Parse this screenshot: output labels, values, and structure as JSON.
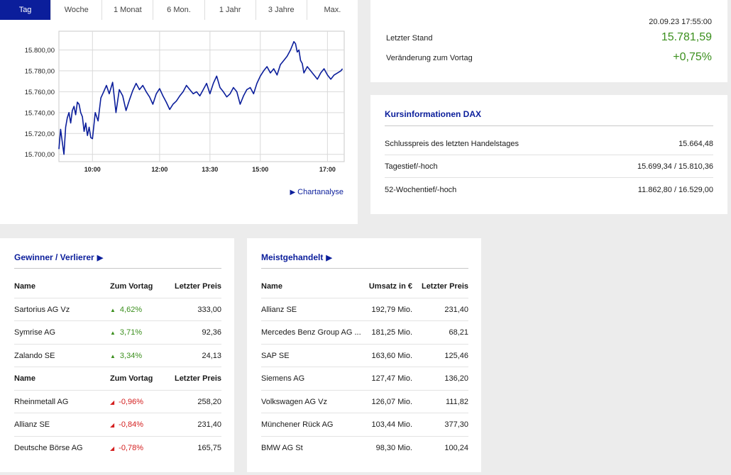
{
  "tabs": [
    "Tag",
    "Woche",
    "1 Monat",
    "6 Mon.",
    "1 Jahr",
    "3 Jahre",
    "Max."
  ],
  "active_tab": "Tag",
  "chart_link": "Chartanalyse",
  "chart_data": {
    "type": "line",
    "x_ticks": [
      "10:00",
      "12:00",
      "13:30",
      "15:00",
      "17:00"
    ],
    "x_tick_minutes": [
      600,
      720,
      810,
      900,
      1020
    ],
    "x_range_minutes": [
      540,
      1050
    ],
    "y_ticks": [
      "15.700,00",
      "15.720,00",
      "15.740,00",
      "15.760,00",
      "15.780,00",
      "15.800,00"
    ],
    "y_tick_values": [
      15700,
      15720,
      15740,
      15760,
      15780,
      15800
    ],
    "ylim": [
      15693,
      15818
    ],
    "grid": true,
    "color": "#0b1e9b",
    "x": [
      540,
      543,
      546,
      549,
      552,
      555,
      558,
      561,
      564,
      567,
      570,
      573,
      576,
      579,
      582,
      585,
      588,
      591,
      594,
      597,
      600,
      605,
      610,
      615,
      620,
      625,
      630,
      636,
      642,
      648,
      654,
      660,
      666,
      672,
      678,
      684,
      690,
      696,
      702,
      708,
      714,
      720,
      726,
      732,
      738,
      744,
      750,
      756,
      762,
      768,
      774,
      780,
      786,
      792,
      798,
      804,
      810,
      816,
      822,
      828,
      834,
      840,
      846,
      852,
      858,
      864,
      870,
      876,
      882,
      888,
      894,
      900,
      906,
      912,
      918,
      924,
      930,
      936,
      942,
      948,
      954,
      960,
      963,
      966,
      969,
      972,
      975,
      978,
      984,
      990,
      996,
      1002,
      1008,
      1014,
      1020,
      1026,
      1032,
      1038,
      1044,
      1047
    ],
    "y": [
      15705,
      15724,
      15712,
      15700,
      15726,
      15735,
      15740,
      15730,
      15742,
      15746,
      15738,
      15750,
      15748,
      15740,
      15736,
      15722,
      15730,
      15718,
      15726,
      15716,
      15715,
      15740,
      15732,
      15754,
      15760,
      15766,
      15758,
      15769,
      15740,
      15762,
      15756,
      15742,
      15752,
      15761,
      15768,
      15762,
      15766,
      15760,
      15755,
      15748,
      15758,
      15763,
      15756,
      15750,
      15743,
      15748,
      15751,
      15756,
      15760,
      15766,
      15762,
      15758,
      15760,
      15756,
      15762,
      15768,
      15758,
      15768,
      15775,
      15764,
      15760,
      15755,
      15758,
      15764,
      15760,
      15748,
      15756,
      15762,
      15764,
      15758,
      15768,
      15775,
      15780,
      15784,
      15778,
      15782,
      15776,
      15786,
      15790,
      15794,
      15800,
      15808,
      15806,
      15798,
      15800,
      15790,
      15787,
      15778,
      15784,
      15780,
      15776,
      15772,
      15778,
      15782,
      15776,
      15772,
      15776,
      15778,
      15780,
      15782
    ]
  },
  "quote": {
    "timestamp": "20.09.23 17:55:00",
    "last_label": "Letzter Stand",
    "last_value": "15.781,59",
    "change_label": "Veränderung zum Vortag",
    "change_value": "+0,75%",
    "positive_color": "#3b8f1d"
  },
  "info": {
    "title": "Kursinformationen DAX",
    "rows": [
      {
        "label": "Schlusspreis des letzten Handelstages",
        "value": "15.664,48"
      },
      {
        "label": "Tagestief/-hoch",
        "value": "15.699,34 / 15.810,36"
      },
      {
        "label": "52-Wochentief/-hoch",
        "value": "11.862,80 / 16.529,00"
      }
    ]
  },
  "gainers": {
    "title": "Gewinner / Verlierer",
    "headers": [
      "Name",
      "Zum Vortag",
      "Letzter Preis"
    ],
    "winners": [
      {
        "name": "Sartorius AG Vz",
        "change": "4,62%",
        "price": "333,00"
      },
      {
        "name": "Symrise AG",
        "change": "3,71%",
        "price": "92,36"
      },
      {
        "name": "Zalando SE",
        "change": "3,34%",
        "price": "24,13"
      }
    ],
    "losers": [
      {
        "name": "Rheinmetall AG",
        "change": "-0,96%",
        "price": "258,20"
      },
      {
        "name": "Allianz SE",
        "change": "-0,84%",
        "price": "231,40"
      },
      {
        "name": "Deutsche Börse AG",
        "change": "-0,78%",
        "price": "165,75"
      }
    ]
  },
  "most_traded": {
    "title": "Meistgehandelt",
    "headers": [
      "Name",
      "Umsatz in €",
      "Letzter Preis"
    ],
    "rows": [
      {
        "name": "Allianz SE",
        "volume": "192,79 Mio.",
        "price": "231,40"
      },
      {
        "name": "Mercedes Benz Group AG ...",
        "volume": "181,25 Mio.",
        "price": "68,21"
      },
      {
        "name": "SAP SE",
        "volume": "163,60 Mio.",
        "price": "125,46"
      },
      {
        "name": "Siemens AG",
        "volume": "127,47 Mio.",
        "price": "136,20"
      },
      {
        "name": "Volkswagen AG Vz",
        "volume": "126,07 Mio.",
        "price": "111,82"
      },
      {
        "name": "Münchener Rück AG",
        "volume": "103,44 Mio.",
        "price": "377,30"
      },
      {
        "name": "BMW AG St",
        "volume": "98,30 Mio.",
        "price": "100,24"
      }
    ]
  }
}
